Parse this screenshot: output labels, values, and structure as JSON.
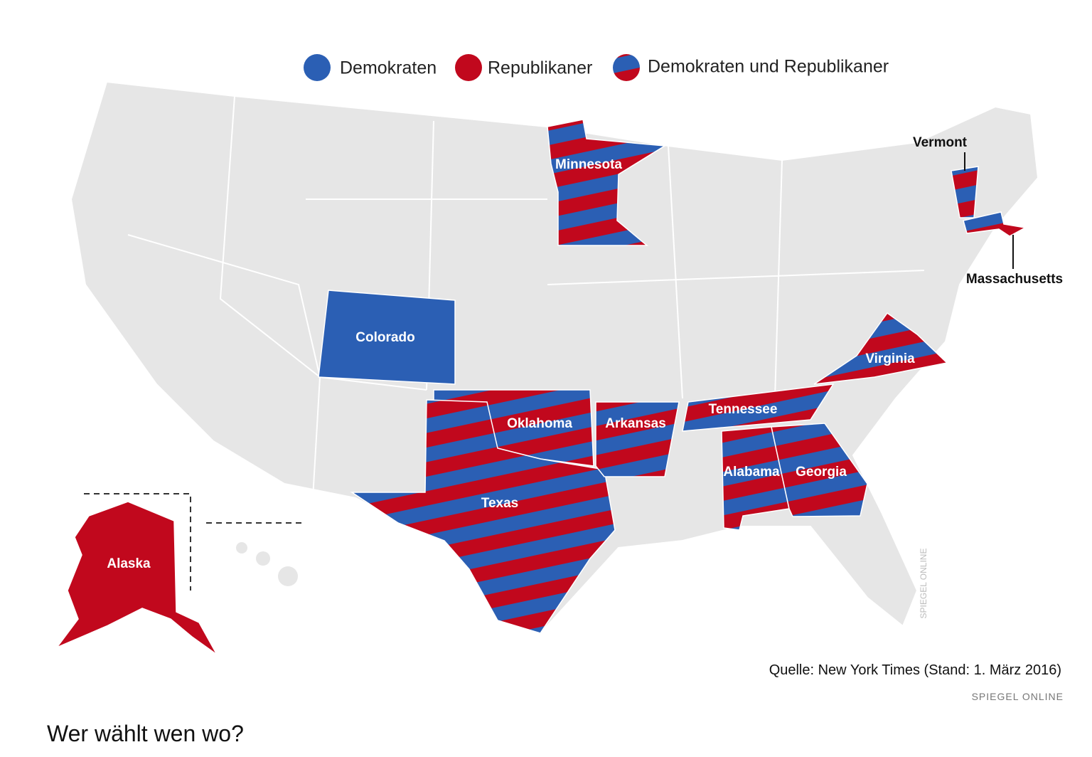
{
  "legend": [
    "Demokraten",
    "Republikaner",
    "Demokraten und Republikaner"
  ],
  "states": [
    "Minnesota",
    "Vermont",
    "Massachusetts",
    "Colorado",
    "Virginia",
    "Tennessee",
    "Oklahoma",
    "Arkansas",
    "Alabama",
    "Georgia",
    "Texas",
    "Alaska"
  ],
  "source": "Quelle: New York Times (Stand: 1. März 2016)",
  "credit": "SPIEGEL ONLINE",
  "watermark": "SPIEGEL ONLINE",
  "caption": "Wer wählt wen wo?"
}
